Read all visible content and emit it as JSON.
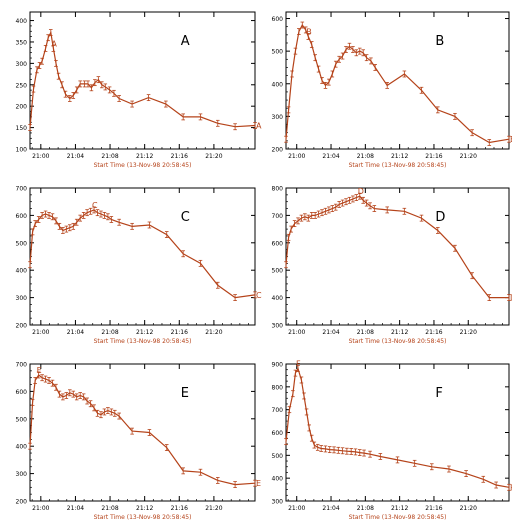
{
  "colors": {
    "series": "#b5431a",
    "axis": "#000000",
    "background": "#ffffff"
  },
  "chart_data": [
    {
      "type": "line",
      "panel_label": "A",
      "xlabel": "Start Time (13-Nov-98 20:58:45)",
      "xlim": [
        0,
        26
      ],
      "ylim": [
        100,
        420
      ],
      "x_tick_values": [
        1.25,
        5.25,
        9.25,
        13.25,
        17.25,
        21.25
      ],
      "x_tick_labels": [
        "21:00",
        "21:04",
        "21:08",
        "21:12",
        "21:16",
        "21:20"
      ],
      "y_ticks": [
        100,
        150,
        200,
        250,
        300,
        350,
        400
      ],
      "marker_label": "A",
      "marker_index": 8,
      "x": [
        0.0,
        0.4,
        0.8,
        1.1,
        1.4,
        1.8,
        2.1,
        2.4,
        2.7,
        3.0,
        3.3,
        3.7,
        4.1,
        4.6,
        5.0,
        5.4,
        5.8,
        6.3,
        6.7,
        7.1,
        7.5,
        7.9,
        8.3,
        8.7,
        9.2,
        9.7,
        10.3,
        11.8,
        13.7,
        15.7,
        17.7,
        19.7,
        21.7,
        23.7,
        26.0
      ],
      "y": [
        150,
        240,
        285,
        295,
        305,
        335,
        360,
        372,
        335,
        300,
        270,
        250,
        228,
        218,
        225,
        238,
        252,
        252,
        252,
        243,
        255,
        262,
        250,
        245,
        238,
        230,
        218,
        205,
        220,
        205,
        175,
        175,
        160,
        152,
        155
      ]
    },
    {
      "type": "line",
      "panel_label": "B",
      "xlabel": "Start Time (13-Nov-98 20:58:45)",
      "xlim": [
        0,
        26
      ],
      "ylim": [
        200,
        620
      ],
      "x_tick_values": [
        1.25,
        5.25,
        9.25,
        13.25,
        17.25,
        21.25
      ],
      "x_tick_labels": [
        "21:00",
        "21:04",
        "21:08",
        "21:12",
        "21:16",
        "21:20"
      ],
      "y_ticks": [
        200,
        300,
        400,
        500,
        600
      ],
      "marker_label": "B",
      "marker_index": 7,
      "x": [
        0.0,
        0.3,
        0.7,
        1.1,
        1.5,
        1.9,
        2.3,
        2.6,
        3.0,
        3.4,
        3.8,
        4.2,
        4.6,
        5.0,
        5.4,
        5.8,
        6.2,
        6.6,
        7.0,
        7.4,
        7.8,
        8.2,
        8.6,
        9.0,
        9.4,
        9.9,
        10.4,
        11.8,
        13.8,
        15.8,
        17.7,
        19.7,
        21.7,
        23.7,
        26.0
      ],
      "y": [
        230,
        320,
        430,
        500,
        560,
        580,
        565,
        545,
        520,
        480,
        445,
        410,
        395,
        405,
        430,
        460,
        475,
        485,
        505,
        515,
        505,
        495,
        500,
        495,
        480,
        470,
        450,
        395,
        430,
        380,
        320,
        300,
        250,
        220,
        230
      ]
    },
    {
      "type": "line",
      "panel_label": "C",
      "xlabel": "Start Time (13-Nov-98 20:58:45)",
      "xlim": [
        0,
        26
      ],
      "ylim": [
        200,
        700
      ],
      "x_tick_values": [
        1.25,
        5.25,
        9.25,
        13.25,
        17.25,
        21.25
      ],
      "x_tick_labels": [
        "21:00",
        "21:04",
        "21:08",
        "21:12",
        "21:16",
        "21:20"
      ],
      "y_ticks": [
        200,
        300,
        400,
        500,
        600,
        700
      ],
      "marker_label": "C",
      "marker_index": 19,
      "x": [
        0.0,
        0.3,
        0.6,
        1.0,
        1.4,
        1.8,
        2.2,
        2.6,
        3.0,
        3.4,
        3.8,
        4.2,
        4.6,
        5.0,
        5.4,
        5.8,
        6.2,
        6.6,
        7.0,
        7.4,
        7.8,
        8.2,
        8.6,
        9.0,
        9.4,
        10.3,
        11.8,
        13.8,
        15.8,
        17.7,
        19.7,
        21.7,
        23.7,
        26.0
      ],
      "y": [
        420,
        540,
        570,
        585,
        600,
        605,
        600,
        595,
        580,
        560,
        545,
        550,
        555,
        560,
        575,
        590,
        600,
        610,
        615,
        620,
        610,
        605,
        600,
        595,
        585,
        575,
        560,
        565,
        530,
        460,
        425,
        345,
        300,
        310
      ]
    },
    {
      "type": "line",
      "panel_label": "D",
      "xlabel": "Start Time (13-Nov-98 20:58:45)",
      "xlim": [
        0,
        26
      ],
      "ylim": [
        300,
        800
      ],
      "x_tick_values": [
        1.25,
        5.25,
        9.25,
        13.25,
        17.25,
        21.25
      ],
      "x_tick_labels": [
        "21:00",
        "21:04",
        "21:08",
        "21:12",
        "21:16",
        "21:20"
      ],
      "y_ticks": [
        300,
        400,
        500,
        600,
        700,
        800
      ],
      "marker_label": "D",
      "marker_index": 22,
      "x": [
        0.0,
        0.3,
        0.6,
        1.0,
        1.4,
        1.8,
        2.2,
        2.6,
        3.0,
        3.4,
        3.8,
        4.2,
        4.6,
        5.0,
        5.4,
        5.8,
        6.2,
        6.6,
        7.0,
        7.4,
        7.8,
        8.2,
        8.6,
        9.0,
        9.4,
        9.8,
        10.3,
        11.8,
        13.8,
        15.8,
        17.7,
        19.7,
        21.7,
        23.7,
        26.0
      ],
      "y": [
        520,
        620,
        650,
        670,
        680,
        690,
        695,
        690,
        700,
        700,
        705,
        710,
        715,
        720,
        725,
        730,
        740,
        745,
        750,
        755,
        760,
        765,
        770,
        755,
        745,
        735,
        725,
        720,
        715,
        690,
        645,
        580,
        480,
        400,
        400
      ]
    },
    {
      "type": "line",
      "panel_label": "E",
      "xlabel": "Start Time (13-Nov-98 20:58:45)",
      "xlim": [
        0,
        26
      ],
      "ylim": [
        200,
        700
      ],
      "x_tick_values": [
        1.25,
        5.25,
        9.25,
        13.25,
        17.25,
        21.25
      ],
      "x_tick_labels": [
        "21:00",
        "21:04",
        "21:08",
        "21:12",
        "21:16",
        "21:20"
      ],
      "y_ticks": [
        200,
        300,
        400,
        500,
        600,
        700
      ],
      "marker_label": "E",
      "marker_index": 3,
      "x": [
        0.0,
        0.3,
        0.6,
        1.0,
        1.4,
        1.8,
        2.2,
        2.6,
        3.0,
        3.4,
        3.8,
        4.2,
        4.6,
        5.0,
        5.4,
        5.8,
        6.2,
        6.6,
        7.0,
        7.4,
        7.8,
        8.2,
        8.6,
        9.0,
        9.4,
        9.8,
        10.3,
        11.8,
        13.8,
        15.8,
        17.7,
        19.7,
        21.7,
        23.7,
        26.0
      ],
      "y": [
        400,
        560,
        640,
        660,
        650,
        645,
        640,
        630,
        615,
        590,
        580,
        585,
        595,
        590,
        580,
        585,
        580,
        565,
        555,
        540,
        520,
        515,
        525,
        530,
        525,
        520,
        510,
        455,
        450,
        395,
        310,
        305,
        275,
        260,
        265
      ]
    },
    {
      "type": "line",
      "panel_label": "F",
      "xlabel": "Start Time (13-Nov-98 20:58:45)",
      "xlim": [
        0,
        26
      ],
      "ylim": [
        300,
        900
      ],
      "x_tick_values": [
        1.25,
        5.25,
        9.25,
        13.25,
        17.25,
        21.25
      ],
      "x_tick_labels": [
        "21:00",
        "21:04",
        "21:08",
        "21:12",
        "21:16",
        "21:20"
      ],
      "y_ticks": [
        300,
        400,
        500,
        600,
        700,
        800,
        900
      ],
      "marker_label": "F",
      "marker_index": 4,
      "x": [
        0.0,
        0.4,
        0.8,
        1.1,
        1.4,
        1.8,
        2.1,
        2.4,
        2.7,
        3.0,
        3.3,
        3.7,
        4.1,
        4.6,
        5.1,
        5.6,
        6.1,
        6.6,
        7.1,
        7.6,
        8.1,
        8.6,
        9.1,
        9.8,
        11.0,
        13.0,
        15.0,
        17.0,
        19.0,
        21.0,
        23.0,
        24.5,
        26.0
      ],
      "y": [
        560,
        700,
        770,
        860,
        880,
        830,
        760,
        690,
        620,
        575,
        545,
        535,
        530,
        528,
        525,
        524,
        522,
        520,
        518,
        517,
        515,
        512,
        510,
        505,
        495,
        480,
        465,
        450,
        440,
        420,
        395,
        370,
        360
      ]
    }
  ]
}
